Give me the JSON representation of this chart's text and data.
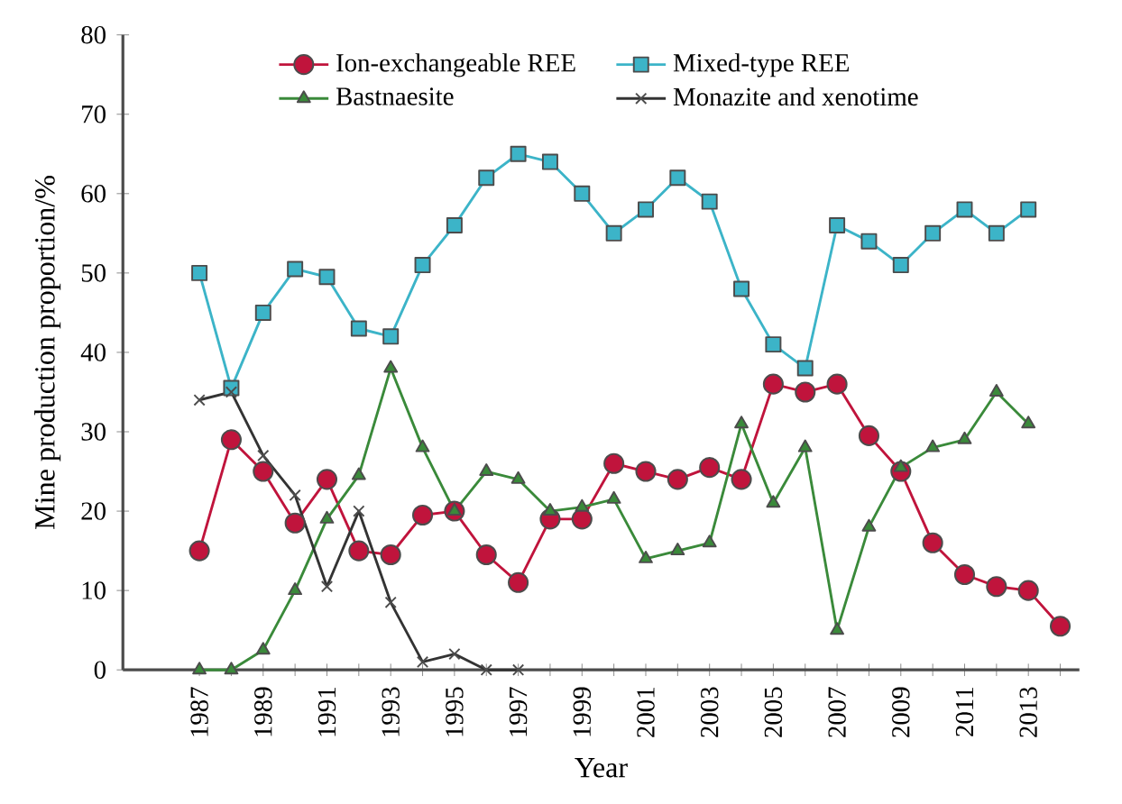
{
  "chart_data": {
    "type": "line",
    "xlabel": "Year",
    "ylabel": "Mine production proportion/%",
    "x": [
      1987,
      1988,
      1989,
      1990,
      1991,
      1992,
      1993,
      1994,
      1995,
      1996,
      1997,
      1998,
      1999,
      2000,
      2001,
      2002,
      2003,
      2004,
      2005,
      2006,
      2007,
      2008,
      2009,
      2010,
      2011,
      2012,
      2013,
      2014
    ],
    "xlim": [
      1984.6,
      2014.6
    ],
    "xticks": [
      1987,
      {
        "value": 1988,
        "label": null
      },
      1989,
      {
        "value": 1990,
        "label": null
      },
      1991,
      {
        "value": 1992,
        "label": null
      },
      1993,
      {
        "value": 1994,
        "label": null
      },
      1995,
      {
        "value": 1996,
        "label": null
      },
      1997,
      {
        "value": 1998,
        "label": null
      },
      1999,
      {
        "value": 2000,
        "label": null
      },
      2001,
      {
        "value": 2002,
        "label": null
      },
      2003,
      {
        "value": 2004,
        "label": null
      },
      2005,
      {
        "value": 2006,
        "label": null
      },
      2007,
      {
        "value": 2008,
        "label": null
      },
      2009,
      {
        "value": 2010,
        "label": null
      },
      2011,
      {
        "value": 2012,
        "label": null
      },
      2013,
      {
        "value": 2014,
        "label": null
      }
    ],
    "ylim": [
      0,
      80
    ],
    "yticks": [
      0,
      10,
      20,
      30,
      40,
      50,
      60,
      70,
      80
    ],
    "grid": false,
    "legend": "top",
    "series": [
      {
        "name": "Ion-exchangeable REE",
        "color": "#c0143c",
        "marker": "circle",
        "values": [
          15,
          29,
          25,
          18.5,
          24,
          15,
          14.5,
          19.5,
          20,
          14.5,
          11,
          19,
          19,
          26,
          25,
          24,
          25.5,
          24,
          36,
          35,
          36,
          29.5,
          25,
          16,
          12,
          10.5,
          10,
          5.5
        ]
      },
      {
        "name": "Mixed-type REE",
        "color": "#3cb4c8",
        "marker": "square",
        "values": [
          50,
          35.5,
          45,
          50.5,
          49.5,
          43,
          42,
          51,
          56,
          62,
          65,
          64,
          60,
          55,
          58,
          62,
          59,
          48,
          41,
          38,
          56,
          54,
          51,
          55,
          58,
          55,
          58,
          null
        ]
      },
      {
        "name": "Bastnaesite",
        "color": "#3a8a3a",
        "marker": "triangle",
        "values": [
          0,
          0,
          2.5,
          10,
          19,
          24.5,
          38,
          28,
          20,
          25,
          24,
          20,
          20.5,
          21.5,
          14,
          15,
          16,
          31,
          21,
          28,
          5,
          18,
          25.5,
          28,
          29,
          35,
          31,
          null
        ]
      },
      {
        "name": "Monazite and xenotime",
        "color": "#333333",
        "marker": "cross",
        "values": [
          34,
          35,
          27,
          22,
          10.5,
          20,
          8.5,
          1,
          2,
          0,
          0,
          null,
          null,
          null,
          null,
          null,
          null,
          null,
          null,
          null,
          null,
          null,
          null,
          null,
          null,
          null,
          null,
          null
        ]
      }
    ]
  }
}
